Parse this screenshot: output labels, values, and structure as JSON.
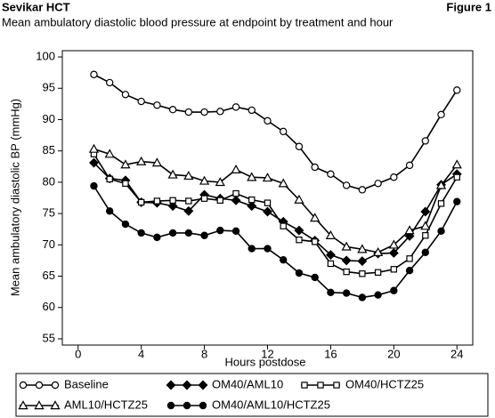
{
  "chart_data": {
    "type": "line",
    "title": "Sevikar HCT",
    "figure_label": "Figure 1",
    "subtitle": "Mean ambulatory diastolic blood pressure at endpoint by treatment and hour",
    "x_label": "Hours postdose",
    "y_label": "Mean ambulatory diastolic BP (mmHg)",
    "x": [
      1,
      2,
      3,
      4,
      5,
      6,
      7,
      8,
      9,
      10,
      11,
      12,
      13,
      14,
      15,
      16,
      17,
      18,
      19,
      20,
      21,
      22,
      23,
      24
    ],
    "xlim": [
      -1,
      25
    ],
    "xticks": [
      0,
      4,
      8,
      12,
      16,
      20,
      24
    ],
    "ylim": [
      54,
      101
    ],
    "yticks": [
      55,
      60,
      65,
      70,
      75,
      80,
      85,
      90,
      95,
      100
    ],
    "grid": false,
    "legend_position": "bottom",
    "series": [
      {
        "name": "Baseline",
        "color": "#000000",
        "marker": "circle-open",
        "values": [
          97.2,
          95.9,
          94.0,
          92.9,
          92.3,
          91.6,
          91.2,
          91.2,
          91.3,
          92.0,
          91.5,
          89.8,
          88.1,
          85.7,
          82.4,
          81.3,
          79.5,
          78.8,
          79.8,
          80.8,
          82.7,
          86.6,
          90.8,
          94.7
        ]
      },
      {
        "name": "OM40/AML10",
        "color": "#000000",
        "marker": "diamond-filled",
        "values": [
          83.1,
          80.6,
          80.3,
          76.8,
          76.7,
          76.2,
          75.4,
          78.0,
          77.4,
          77.1,
          76.2,
          75.3,
          73.7,
          72.3,
          70.7,
          68.4,
          67.5,
          67.4,
          68.6,
          68.7,
          71.4,
          75.3,
          79.6,
          81.3
        ]
      },
      {
        "name": "OM40/HCTZ25",
        "color": "#000000",
        "marker": "square-open",
        "values": [
          84.5,
          80.5,
          79.8,
          76.8,
          77.0,
          77.1,
          77.0,
          77.4,
          77.1,
          78.2,
          77.2,
          76.7,
          73.0,
          70.8,
          70.5,
          67.0,
          65.7,
          65.4,
          65.6,
          66.1,
          67.8,
          71.5,
          76.6,
          80.8
        ]
      },
      {
        "name": "AML10/HCTZ25",
        "color": "#000000",
        "marker": "triangle-open",
        "values": [
          85.3,
          84.5,
          82.8,
          83.3,
          83.1,
          81.2,
          81.0,
          80.2,
          80.0,
          82.0,
          80.8,
          80.7,
          79.8,
          77.2,
          74.3,
          71.5,
          69.7,
          69.3,
          68.8,
          70.0,
          72.3,
          73.0,
          79.5,
          82.8
        ]
      },
      {
        "name": "OM40/AML10/HCTZ25",
        "color": "#000000",
        "marker": "circle-filled",
        "values": [
          79.4,
          75.4,
          73.3,
          71.9,
          71.2,
          71.9,
          71.9,
          71.5,
          72.3,
          72.2,
          69.4,
          69.4,
          67.6,
          65.5,
          64.8,
          62.4,
          62.3,
          61.6,
          62.0,
          62.7,
          65.9,
          68.8,
          72.2,
          76.9
        ]
      }
    ]
  }
}
